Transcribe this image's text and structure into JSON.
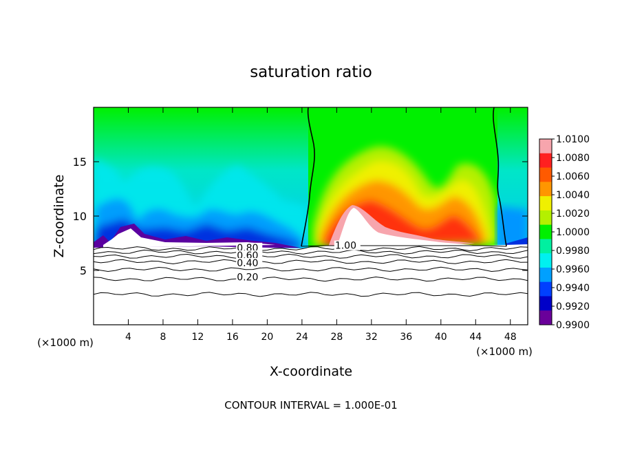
{
  "chart_data": {
    "type": "heatmap",
    "title": "saturation ratio",
    "xlabel": "X-coordinate",
    "ylabel": "Z-coordinate",
    "x_unit_left": "(×1000 m)",
    "x_unit_right": "(×1000 m)",
    "footer": "CONTOUR INTERVAL = 1.000E-01",
    "xlim": [
      0,
      50
    ],
    "ylim": [
      0,
      20
    ],
    "x_ticks": [
      4,
      8,
      12,
      16,
      20,
      24,
      28,
      32,
      36,
      40,
      44,
      48
    ],
    "x_tick_labels": [
      "4",
      "8",
      "12",
      "16",
      "20",
      "24",
      "28",
      "32",
      "36",
      "40",
      "44",
      "48"
    ],
    "y_ticks": [
      5,
      10,
      15
    ],
    "y_tick_labels": [
      "5",
      "10",
      "15"
    ],
    "colorbar": {
      "min": 0.99,
      "max": 1.01,
      "labels": [
        "1.0100",
        "1.0080",
        "1.0060",
        "1.0040",
        "1.0020",
        "1.0000",
        "0.9980",
        "0.9960",
        "0.9940",
        "0.9920",
        "0.9900"
      ],
      "colors": [
        "#f7a5ad",
        "#ff2020",
        "#ff5a00",
        "#ff9600",
        "#f0f000",
        "#b4f000",
        "#00f000",
        "#00f0a0",
        "#00f0f0",
        "#00a0ff",
        "#0040ff",
        "#0000c8",
        "#6a009a"
      ]
    },
    "contour_labels": [
      {
        "text": "0.80",
        "x": 16.5,
        "z": 7.1
      },
      {
        "text": "0.60",
        "x": 16.5,
        "z": 6.4
      },
      {
        "text": "0.40",
        "x": 16.5,
        "z": 5.7
      },
      {
        "text": "0.20",
        "x": 16.5,
        "z": 4.4
      },
      {
        "text": "1.00",
        "x": 27.8,
        "z": 7.3
      }
    ],
    "contour_levels_z": [
      2.8,
      4.2,
      5.1,
      5.8,
      6.3,
      6.7,
      7.0
    ]
  }
}
